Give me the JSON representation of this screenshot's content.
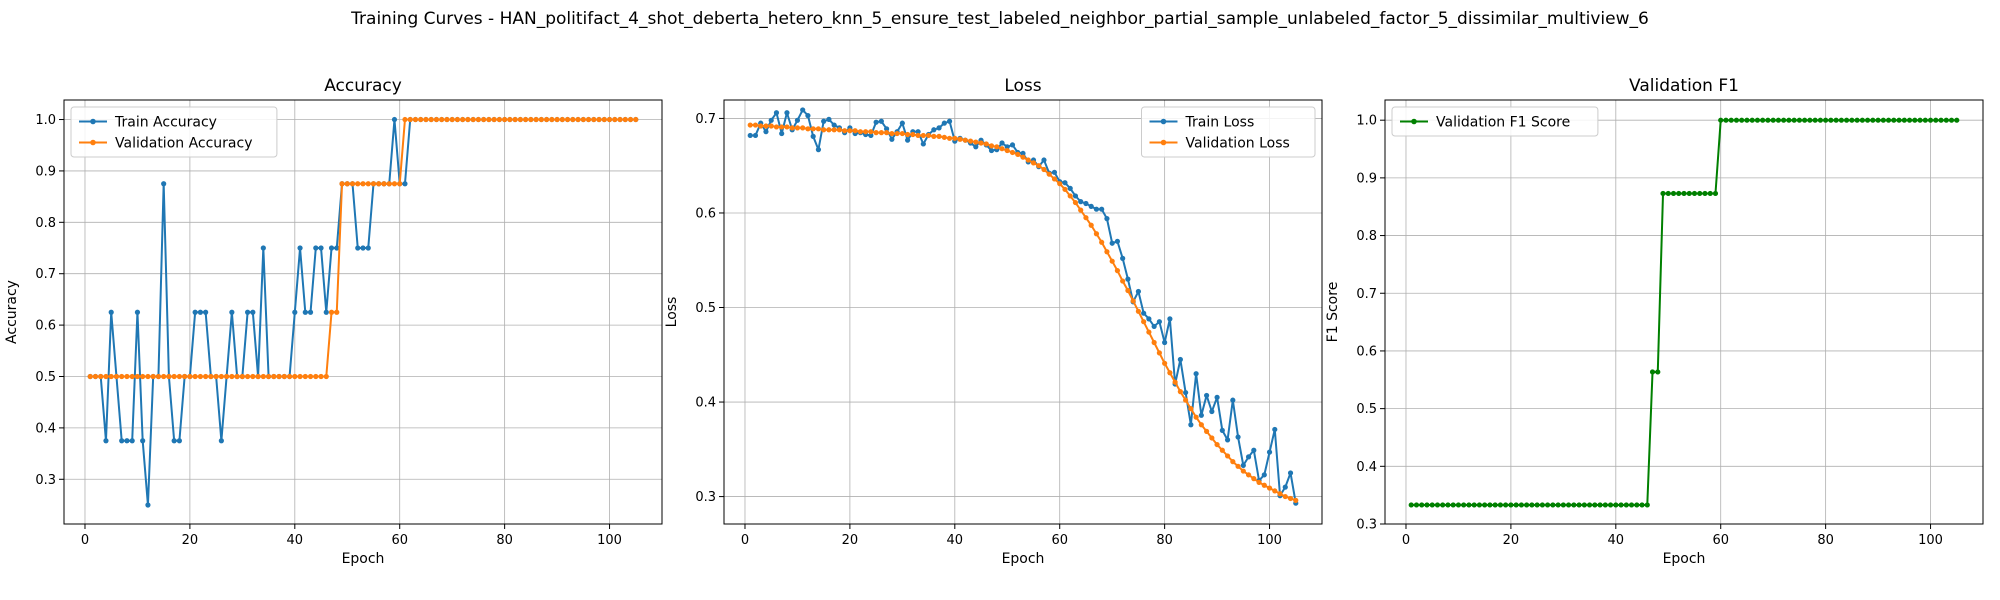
{
  "figure": {
    "suptitle": "Training Curves - HAN_politifact_4_shot_deberta_hetero_knn_5_ensure_test_labeled_neighbor_partial_sample_unlabeled_factor_5_dissimilar_multiview_6"
  },
  "colors": {
    "train": "#1f77b4",
    "validation": "#ff7f0e",
    "f1": "#008000"
  },
  "chart_data": [
    {
      "type": "line",
      "title": "Accuracy",
      "xlabel": "Epoch",
      "ylabel": "Accuracy",
      "xlim": [
        -4,
        110
      ],
      "ylim": [
        0.213,
        1.038
      ],
      "xticks": [
        0,
        20,
        40,
        60,
        80,
        100
      ],
      "yticks": [
        0.3,
        0.4,
        0.5,
        0.6,
        0.7,
        0.8,
        0.9,
        1.0
      ],
      "legend_loc": "upper-left",
      "grid": true,
      "series": [
        {
          "name": "Train Accuracy",
          "color": "#1f77b4",
          "values": [
            0.5,
            0.5,
            0.5,
            0.375,
            0.625,
            0.5,
            0.375,
            0.375,
            0.375,
            0.625,
            0.375,
            0.25,
            0.5,
            0.5,
            0.875,
            0.5,
            0.375,
            0.375,
            0.5,
            0.5,
            0.625,
            0.625,
            0.625,
            0.5,
            0.5,
            0.375,
            0.5,
            0.625,
            0.5,
            0.5,
            0.625,
            0.625,
            0.5,
            0.75,
            0.5,
            0.5,
            0.5,
            0.5,
            0.5,
            0.625,
            0.75,
            0.625,
            0.625,
            0.75,
            0.75,
            0.625,
            0.75,
            0.75,
            0.875,
            0.875,
            0.875,
            0.75,
            0.75,
            0.75,
            0.875,
            0.875,
            0.875,
            0.875,
            1.0,
            0.875,
            0.875,
            1.0,
            1.0,
            1.0,
            1.0,
            1.0,
            1.0,
            1.0,
            1.0,
            1.0,
            1.0,
            1.0,
            1.0,
            1.0,
            1.0,
            1.0,
            1.0,
            1.0,
            1.0,
            1.0,
            1.0,
            1.0,
            1.0,
            1.0,
            1.0,
            1.0,
            1.0,
            1.0,
            1.0,
            1.0,
            1.0,
            1.0,
            1.0,
            1.0,
            1.0,
            1.0,
            1.0,
            1.0,
            1.0,
            1.0,
            1.0,
            1.0,
            1.0,
            1.0,
            1.0
          ]
        },
        {
          "name": "Validation Accuracy",
          "color": "#ff7f0e",
          "values": [
            0.5,
            0.5,
            0.5,
            0.5,
            0.5,
            0.5,
            0.5,
            0.5,
            0.5,
            0.5,
            0.5,
            0.5,
            0.5,
            0.5,
            0.5,
            0.5,
            0.5,
            0.5,
            0.5,
            0.5,
            0.5,
            0.5,
            0.5,
            0.5,
            0.5,
            0.5,
            0.5,
            0.5,
            0.5,
            0.5,
            0.5,
            0.5,
            0.5,
            0.5,
            0.5,
            0.5,
            0.5,
            0.5,
            0.5,
            0.5,
            0.5,
            0.5,
            0.5,
            0.5,
            0.5,
            0.5,
            0.625,
            0.625,
            0.875,
            0.875,
            0.875,
            0.875,
            0.875,
            0.875,
            0.875,
            0.875,
            0.875,
            0.875,
            0.875,
            0.875,
            1.0,
            1.0,
            1.0,
            1.0,
            1.0,
            1.0,
            1.0,
            1.0,
            1.0,
            1.0,
            1.0,
            1.0,
            1.0,
            1.0,
            1.0,
            1.0,
            1.0,
            1.0,
            1.0,
            1.0,
            1.0,
            1.0,
            1.0,
            1.0,
            1.0,
            1.0,
            1.0,
            1.0,
            1.0,
            1.0,
            1.0,
            1.0,
            1.0,
            1.0,
            1.0,
            1.0,
            1.0,
            1.0,
            1.0,
            1.0,
            1.0,
            1.0,
            1.0,
            1.0,
            1.0
          ]
        }
      ]
    },
    {
      "type": "line",
      "title": "Loss",
      "xlabel": "Epoch",
      "ylabel": "Loss",
      "xlim": [
        -4,
        110
      ],
      "ylim": [
        0.271,
        0.7195
      ],
      "xticks": [
        0,
        20,
        40,
        60,
        80,
        100
      ],
      "yticks": [
        0.3,
        0.4,
        0.5,
        0.6,
        0.7
      ],
      "legend_loc": "upper-right",
      "grid": true,
      "series": [
        {
          "name": "Train Loss",
          "color": "#1f77b4",
          "values": [
            0.682,
            0.682,
            0.695,
            0.686,
            0.698,
            0.706,
            0.684,
            0.706,
            0.688,
            0.698,
            0.709,
            0.703,
            0.681,
            0.667,
            0.697,
            0.699,
            0.693,
            0.69,
            0.685,
            0.69,
            0.684,
            0.685,
            0.683,
            0.682,
            0.696,
            0.697,
            0.689,
            0.678,
            0.686,
            0.695,
            0.677,
            0.686,
            0.686,
            0.673,
            0.683,
            0.688,
            0.69,
            0.695,
            0.697,
            0.676,
            0.679,
            0.677,
            0.674,
            0.67,
            0.677,
            0.672,
            0.666,
            0.667,
            0.674,
            0.67,
            0.672,
            0.664,
            0.663,
            0.654,
            0.656,
            0.649,
            0.656,
            0.642,
            0.643,
            0.633,
            0.632,
            0.626,
            0.618,
            0.612,
            0.61,
            0.607,
            0.604,
            0.604,
            0.594,
            0.568,
            0.57,
            0.552,
            0.53,
            0.506,
            0.517,
            0.494,
            0.488,
            0.48,
            0.485,
            0.463,
            0.488,
            0.419,
            0.445,
            0.41,
            0.376,
            0.43,
            0.386,
            0.407,
            0.39,
            0.405,
            0.37,
            0.36,
            0.402,
            0.363,
            0.333,
            0.342,
            0.349,
            0.317,
            0.323,
            0.347,
            0.371,
            0.301,
            0.31,
            0.325,
            0.293
          ]
        },
        {
          "name": "Validation Loss",
          "color": "#ff7f0e",
          "values": [
            0.693,
            0.693,
            0.692,
            0.692,
            0.692,
            0.691,
            0.691,
            0.691,
            0.69,
            0.69,
            0.69,
            0.689,
            0.689,
            0.689,
            0.688,
            0.688,
            0.688,
            0.688,
            0.687,
            0.687,
            0.687,
            0.686,
            0.686,
            0.686,
            0.685,
            0.685,
            0.685,
            0.684,
            0.684,
            0.684,
            0.683,
            0.683,
            0.682,
            0.682,
            0.682,
            0.681,
            0.681,
            0.68,
            0.679,
            0.679,
            0.678,
            0.677,
            0.676,
            0.675,
            0.674,
            0.673,
            0.671,
            0.67,
            0.668,
            0.666,
            0.664,
            0.662,
            0.659,
            0.656,
            0.653,
            0.65,
            0.646,
            0.641,
            0.636,
            0.631,
            0.625,
            0.618,
            0.611,
            0.603,
            0.595,
            0.587,
            0.578,
            0.569,
            0.559,
            0.549,
            0.539,
            0.528,
            0.518,
            0.507,
            0.496,
            0.485,
            0.474,
            0.463,
            0.452,
            0.441,
            0.431,
            0.421,
            0.411,
            0.402,
            0.393,
            0.384,
            0.376,
            0.369,
            0.362,
            0.355,
            0.349,
            0.343,
            0.337,
            0.332,
            0.327,
            0.323,
            0.319,
            0.315,
            0.312,
            0.309,
            0.306,
            0.303,
            0.3,
            0.298,
            0.296
          ]
        }
      ]
    },
    {
      "type": "line",
      "title": "Validation F1",
      "xlabel": "Epoch",
      "ylabel": "F1 Score",
      "xlim": [
        -4,
        110
      ],
      "ylim": [
        0.3,
        1.035
      ],
      "xticks": [
        0,
        20,
        40,
        60,
        80,
        100
      ],
      "yticks": [
        0.3,
        0.4,
        0.5,
        0.6,
        0.7,
        0.8,
        0.9,
        1.0
      ],
      "legend_loc": "upper-left",
      "grid": true,
      "series": [
        {
          "name": "Validation F1 Score",
          "color": "#008000",
          "values": [
            0.333,
            0.333,
            0.333,
            0.333,
            0.333,
            0.333,
            0.333,
            0.333,
            0.333,
            0.333,
            0.333,
            0.333,
            0.333,
            0.333,
            0.333,
            0.333,
            0.333,
            0.333,
            0.333,
            0.333,
            0.333,
            0.333,
            0.333,
            0.333,
            0.333,
            0.333,
            0.333,
            0.333,
            0.333,
            0.333,
            0.333,
            0.333,
            0.333,
            0.333,
            0.333,
            0.333,
            0.333,
            0.333,
            0.333,
            0.333,
            0.333,
            0.333,
            0.333,
            0.333,
            0.333,
            0.333,
            0.5636,
            0.5636,
            0.873,
            0.873,
            0.873,
            0.873,
            0.873,
            0.873,
            0.873,
            0.873,
            0.873,
            0.873,
            0.873,
            1.0,
            1.0,
            1.0,
            1.0,
            1.0,
            1.0,
            1.0,
            1.0,
            1.0,
            1.0,
            1.0,
            1.0,
            1.0,
            1.0,
            1.0,
            1.0,
            1.0,
            1.0,
            1.0,
            1.0,
            1.0,
            1.0,
            1.0,
            1.0,
            1.0,
            1.0,
            1.0,
            1.0,
            1.0,
            1.0,
            1.0,
            1.0,
            1.0,
            1.0,
            1.0,
            1.0,
            1.0,
            1.0,
            1.0,
            1.0,
            1.0,
            1.0,
            1.0,
            1.0,
            1.0,
            1.0
          ]
        }
      ]
    }
  ]
}
